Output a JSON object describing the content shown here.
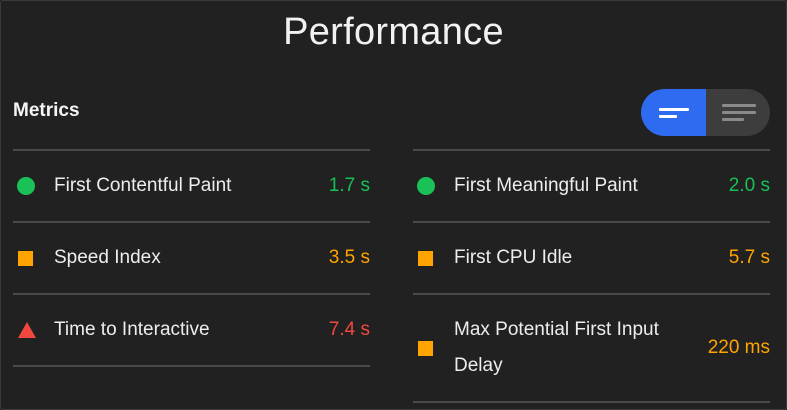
{
  "title": "Performance",
  "metrics_label": "Metrics",
  "colors": {
    "pass": "#19c156",
    "average": "#ffa400",
    "fail": "#f0483e",
    "accent": "#2f6bf0"
  },
  "toggle": {
    "options": [
      "compact-view-icon",
      "expanded-view-icon"
    ],
    "selected": "compact-view-icon"
  },
  "left_metrics": [
    {
      "label": "First Contentful Paint",
      "value": "1.7 s",
      "rating": "pass",
      "icon": "circle"
    },
    {
      "label": "Speed Index",
      "value": "3.5 s",
      "rating": "average",
      "icon": "square"
    },
    {
      "label": "Time to Interactive",
      "value": "7.4 s",
      "rating": "fail",
      "icon": "triangle"
    }
  ],
  "right_metrics": [
    {
      "label": "First Meaningful Paint",
      "value": "2.0 s",
      "rating": "pass",
      "icon": "circle"
    },
    {
      "label": "First CPU Idle",
      "value": "5.7 s",
      "rating": "average",
      "icon": "square"
    },
    {
      "label": "Max Potential First Input Delay",
      "value": "220 ms",
      "rating": "average",
      "icon": "square"
    }
  ]
}
